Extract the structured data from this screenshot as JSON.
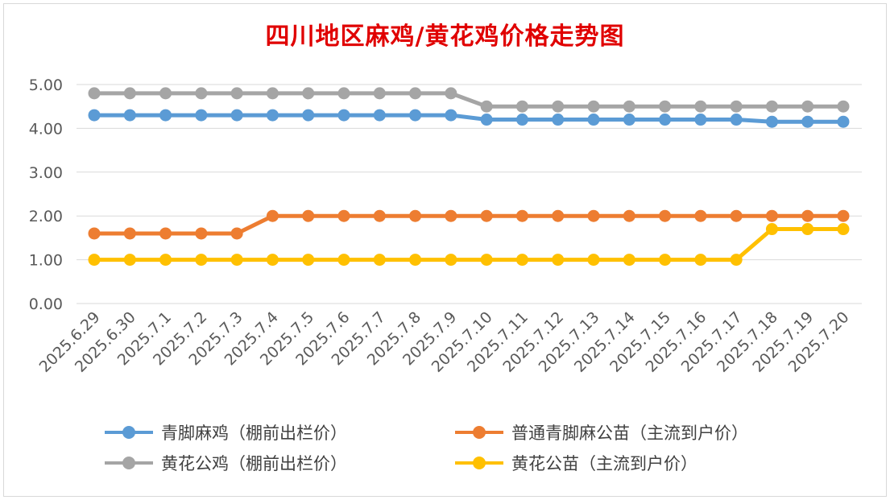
{
  "chart_data": {
    "type": "line",
    "title": "四川地区麻鸡/黄花鸡价格走势图",
    "categories": [
      "2025.6.29",
      "2025.6.30",
      "2025.7.1",
      "2025.7.2",
      "2025.7.3",
      "2025.7.4",
      "2025.7.5",
      "2025.7.6",
      "2025.7.7",
      "2025.7.8",
      "2025.7.9",
      "2025.7.10",
      "2025.7.11",
      "2025.7.12",
      "2025.7.13",
      "2025.7.14",
      "2025.7.15",
      "2025.7.16",
      "2025.7.17",
      "2025.7.18",
      "2025.7.19",
      "2025.7.20"
    ],
    "ylim": [
      0,
      5
    ],
    "yticks": [
      "0.00",
      "1.00",
      "2.00",
      "3.00",
      "4.00",
      "5.00"
    ],
    "grid": true,
    "legend_position": "bottom",
    "series": [
      {
        "name": "青脚麻鸡（棚前出栏价）",
        "color": "#5b9bd5",
        "values": [
          4.3,
          4.3,
          4.3,
          4.3,
          4.3,
          4.3,
          4.3,
          4.3,
          4.3,
          4.3,
          4.3,
          4.2,
          4.2,
          4.2,
          4.2,
          4.2,
          4.2,
          4.2,
          4.2,
          4.15,
          4.15,
          4.15
        ]
      },
      {
        "name": "普通青脚麻公苗（主流到户价）",
        "color": "#ed7d31",
        "values": [
          1.6,
          1.6,
          1.6,
          1.6,
          1.6,
          2.0,
          2.0,
          2.0,
          2.0,
          2.0,
          2.0,
          2.0,
          2.0,
          2.0,
          2.0,
          2.0,
          2.0,
          2.0,
          2.0,
          2.0,
          2.0,
          2.0
        ]
      },
      {
        "name": "黄花公鸡（棚前出栏价）",
        "color": "#a5a5a5",
        "values": [
          4.8,
          4.8,
          4.8,
          4.8,
          4.8,
          4.8,
          4.8,
          4.8,
          4.8,
          4.8,
          4.8,
          4.5,
          4.5,
          4.5,
          4.5,
          4.5,
          4.5,
          4.5,
          4.5,
          4.5,
          4.5,
          4.5
        ]
      },
      {
        "name": "黄花公苗（主流到户价）",
        "color": "#ffc000",
        "values": [
          1.0,
          1.0,
          1.0,
          1.0,
          1.0,
          1.0,
          1.0,
          1.0,
          1.0,
          1.0,
          1.0,
          1.0,
          1.0,
          1.0,
          1.0,
          1.0,
          1.0,
          1.0,
          1.0,
          1.7,
          1.7,
          1.7
        ]
      }
    ]
  }
}
